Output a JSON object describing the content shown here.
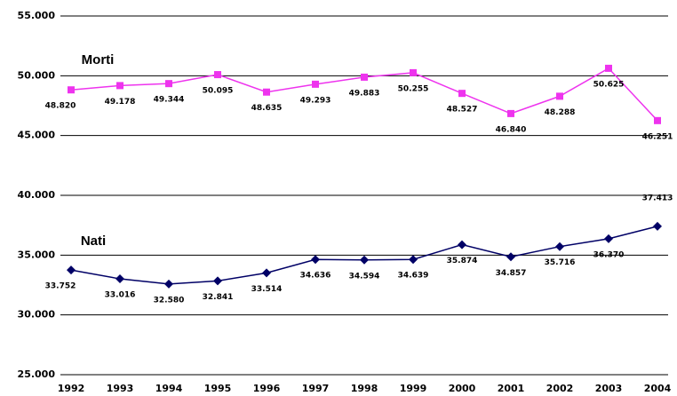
{
  "chart_data": {
    "type": "line",
    "categories": [
      "1992",
      "1993",
      "1994",
      "1995",
      "1996",
      "1997",
      "1998",
      "1999",
      "2000",
      "2001",
      "2002",
      "2003",
      "2004"
    ],
    "series": [
      {
        "name": "Morti",
        "color": "#ee33ee",
        "marker": "square",
        "values": [
          48820,
          49178,
          49344,
          50095,
          48635,
          49293,
          49883,
          50255,
          48527,
          46840,
          48288,
          50625,
          46251
        ],
        "value_labels": [
          "48.820",
          "49.178",
          "49.344",
          "50.095",
          "48.635",
          "49.293",
          "49.883",
          "50.255",
          "48.527",
          "46.840",
          "48.288",
          "50.625",
          "46.251"
        ]
      },
      {
        "name": "Nati",
        "color": "#000066",
        "marker": "diamond",
        "values": [
          33752,
          33016,
          32580,
          32841,
          33514,
          34636,
          34594,
          34639,
          35874,
          34857,
          35716,
          36370,
          37413
        ],
        "value_labels": [
          "33.752",
          "33.016",
          "32.580",
          "32.841",
          "33.514",
          "34.636",
          "34.594",
          "34.639",
          "35.874",
          "34.857",
          "35.716",
          "36.370",
          "37.413"
        ]
      }
    ],
    "ylim": [
      25000,
      55000
    ],
    "yticks": [
      {
        "value": 25000,
        "label": "25.000"
      },
      {
        "value": 30000,
        "label": "30.000"
      },
      {
        "value": 35000,
        "label": "35.000"
      },
      {
        "value": 40000,
        "label": "40.000"
      },
      {
        "value": 45000,
        "label": "45.000"
      },
      {
        "value": 50000,
        "label": "50.000"
      },
      {
        "value": 55000,
        "label": "55.000"
      }
    ],
    "grid": true
  }
}
